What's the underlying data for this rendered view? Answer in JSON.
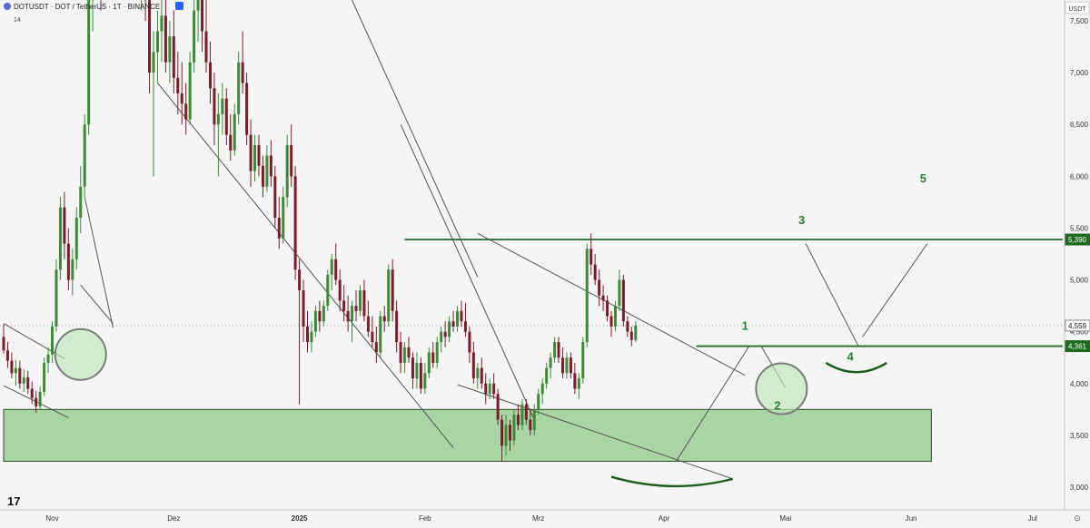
{
  "header": {
    "symbol_line": "DOTUSDT · DOT / TetherUS · 1T · BINANCE",
    "sub_value": "14"
  },
  "axis": {
    "currency": "USDT",
    "ticks": [
      {
        "value": 3000,
        "label": "3,000"
      },
      {
        "value": 3500,
        "label": "3,500"
      },
      {
        "value": 4000,
        "label": "4,000"
      },
      {
        "value": 4500,
        "label": "4,500"
      },
      {
        "value": 5000,
        "label": "5,000"
      },
      {
        "value": 5500,
        "label": "5,500"
      },
      {
        "value": 6000,
        "label": "6,000"
      },
      {
        "value": 6500,
        "label": "6,500"
      },
      {
        "value": 7000,
        "label": "7,000"
      },
      {
        "value": 7500,
        "label": "7,500"
      }
    ],
    "months": [
      {
        "day": 12,
        "label": "Nov"
      },
      {
        "day": 42,
        "label": "Dez"
      },
      {
        "day": 73,
        "label": "2025"
      },
      {
        "day": 104,
        "label": "Feb"
      },
      {
        "day": 132,
        "label": "Mrz"
      },
      {
        "day": 163,
        "label": "Apr"
      },
      {
        "day": 193,
        "label": "Mai"
      },
      {
        "day": 224,
        "label": "Jun"
      },
      {
        "day": 254,
        "label": "Jul"
      }
    ],
    "price_badges": [
      {
        "value": 5390,
        "label": "5,390",
        "style": "line"
      },
      {
        "value": 4559,
        "label": "4,559",
        "style": "last"
      },
      {
        "value": 4361,
        "label": "4,361",
        "style": "line"
      }
    ]
  },
  "branding": {
    "logo_text": "17"
  },
  "colors": {
    "up": "#3e8a3a",
    "down": "#7b1e2b",
    "level": "#1f6b1f",
    "zone_fill": "#a9d4a4",
    "zone_stroke": "#2c4a2c",
    "circle_fill": "#bfe3b8",
    "trendline": "#555555",
    "wave": "#2e7d32"
  },
  "chart_data": {
    "type": "candlestick",
    "symbol": "DOTUSDT",
    "interval": "1T",
    "exchange": "BINANCE",
    "x_unit": "days since 2024-10-21",
    "ylim": [
      2600,
      7800
    ],
    "candles_ohlc": [
      [
        4.45,
        4.57,
        4.29,
        4.32
      ],
      [
        4.32,
        4.4,
        4.15,
        4.22
      ],
      [
        4.22,
        4.3,
        4.05,
        4.1
      ],
      [
        4.1,
        4.23,
        3.98,
        4.15
      ],
      [
        4.15,
        4.22,
        3.95,
        4.0
      ],
      [
        4.0,
        4.14,
        3.92,
        4.06
      ],
      [
        4.06,
        4.12,
        3.9,
        3.95
      ],
      [
        3.95,
        4.02,
        3.8,
        3.86
      ],
      [
        3.86,
        3.93,
        3.72,
        3.78
      ],
      [
        3.78,
        3.97,
        3.75,
        3.92
      ],
      [
        3.92,
        4.25,
        3.88,
        4.2
      ],
      [
        4.2,
        4.35,
        4.1,
        4.28
      ],
      [
        4.28,
        4.6,
        4.2,
        4.55
      ],
      [
        4.55,
        5.2,
        4.5,
        5.1
      ],
      [
        5.1,
        5.8,
        5.0,
        5.7
      ],
      [
        5.7,
        5.85,
        5.2,
        5.35
      ],
      [
        5.35,
        5.5,
        4.9,
        5.0
      ],
      [
        5.0,
        5.3,
        4.85,
        5.2
      ],
      [
        5.2,
        5.7,
        5.1,
        5.6
      ],
      [
        5.6,
        6.1,
        5.45,
        5.9
      ],
      [
        5.9,
        6.6,
        5.8,
        6.5
      ],
      [
        6.5,
        7.95,
        6.4,
        7.8
      ],
      [
        7.8,
        8.4,
        7.4,
        8.2
      ],
      [
        8.2,
        8.8,
        7.9,
        8.5
      ],
      [
        8.5,
        8.7,
        7.6,
        7.9
      ],
      [
        7.9,
        8.9,
        7.8,
        8.6
      ],
      [
        8.6,
        9.2,
        8.3,
        9.0
      ],
      [
        9.0,
        9.4,
        8.5,
        8.7
      ],
      [
        8.7,
        9.1,
        8.2,
        8.4
      ],
      [
        8.4,
        8.8,
        8.0,
        8.6
      ],
      [
        8.6,
        8.9,
        7.9,
        8.1
      ],
      [
        8.1,
        8.5,
        7.7,
        8.3
      ],
      [
        8.3,
        8.8,
        8.0,
        8.55
      ],
      [
        8.55,
        8.75,
        7.8,
        7.95
      ],
      [
        7.95,
        8.3,
        7.6,
        8.1
      ],
      [
        8.1,
        8.4,
        7.5,
        7.7
      ],
      [
        7.7,
        7.95,
        6.8,
        7.0
      ],
      [
        7.0,
        7.4,
        6.0,
        7.2
      ],
      [
        7.2,
        7.6,
        6.9,
        7.4
      ],
      [
        7.4,
        7.8,
        7.1,
        7.55
      ],
      [
        7.55,
        7.7,
        7.0,
        7.1
      ],
      [
        7.1,
        7.5,
        6.9,
        7.35
      ],
      [
        7.35,
        7.6,
        6.8,
        6.95
      ],
      [
        6.95,
        7.2,
        6.6,
        6.8
      ],
      [
        6.8,
        7.1,
        6.5,
        6.7
      ],
      [
        6.7,
        6.9,
        6.4,
        6.55
      ],
      [
        6.55,
        7.2,
        6.5,
        7.1
      ],
      [
        7.1,
        7.7,
        7.0,
        7.6
      ],
      [
        7.6,
        8.0,
        7.3,
        7.8
      ],
      [
        7.8,
        8.1,
        7.2,
        7.4
      ],
      [
        7.4,
        7.7,
        7.0,
        7.1
      ],
      [
        7.1,
        7.3,
        6.7,
        6.85
      ],
      [
        6.85,
        7.0,
        6.3,
        6.5
      ],
      [
        6.5,
        6.8,
        6.0,
        6.6
      ],
      [
        6.6,
        6.9,
        6.4,
        6.75
      ],
      [
        6.75,
        6.85,
        6.3,
        6.4
      ],
      [
        6.4,
        6.6,
        6.15,
        6.25
      ],
      [
        6.25,
        6.7,
        6.2,
        6.6
      ],
      [
        6.6,
        7.2,
        6.5,
        7.1
      ],
      [
        7.1,
        7.4,
        6.8,
        6.9
      ],
      [
        6.9,
        7.0,
        6.3,
        6.4
      ],
      [
        6.4,
        6.55,
        5.9,
        6.05
      ],
      [
        6.05,
        6.4,
        5.95,
        6.3
      ],
      [
        6.3,
        6.4,
        6.0,
        6.1
      ],
      [
        6.1,
        6.2,
        5.8,
        5.9
      ],
      [
        5.9,
        6.3,
        5.85,
        6.2
      ],
      [
        6.2,
        6.35,
        5.9,
        6.0
      ],
      [
        6.0,
        6.1,
        5.5,
        5.6
      ],
      [
        5.6,
        5.8,
        5.3,
        5.4
      ],
      [
        5.4,
        5.9,
        5.35,
        5.8
      ],
      [
        5.8,
        6.4,
        5.7,
        6.3
      ],
      [
        6.3,
        6.5,
        5.9,
        6.0
      ],
      [
        6.0,
        6.1,
        5.0,
        5.1
      ],
      [
        5.1,
        5.2,
        3.8,
        4.9
      ],
      [
        4.9,
        5.0,
        4.4,
        4.55
      ],
      [
        4.55,
        4.7,
        4.3,
        4.4
      ],
      [
        4.4,
        4.6,
        4.3,
        4.5
      ],
      [
        4.5,
        4.75,
        4.45,
        4.7
      ],
      [
        4.7,
        4.8,
        4.5,
        4.6
      ],
      [
        4.6,
        4.8,
        4.55,
        4.75
      ],
      [
        4.75,
        5.1,
        4.7,
        5.05
      ],
      [
        5.05,
        5.25,
        4.9,
        5.2
      ],
      [
        5.2,
        5.35,
        4.95,
        5.0
      ],
      [
        5.0,
        5.1,
        4.7,
        4.8
      ],
      [
        4.8,
        4.95,
        4.6,
        4.7
      ],
      [
        4.7,
        4.85,
        4.5,
        4.6
      ],
      [
        4.6,
        4.8,
        4.4,
        4.75
      ],
      [
        4.75,
        4.9,
        4.6,
        4.7
      ],
      [
        4.7,
        4.95,
        4.65,
        4.9
      ],
      [
        4.9,
        5.0,
        4.6,
        4.65
      ],
      [
        4.65,
        4.8,
        4.45,
        4.5
      ],
      [
        4.5,
        4.65,
        4.35,
        4.4
      ],
      [
        4.4,
        4.55,
        4.2,
        4.3
      ],
      [
        4.3,
        4.7,
        4.25,
        4.65
      ],
      [
        4.65,
        4.75,
        4.5,
        4.6
      ],
      [
        4.6,
        5.15,
        4.55,
        5.1
      ],
      [
        5.1,
        5.2,
        4.6,
        4.7
      ],
      [
        4.7,
        4.8,
        4.3,
        4.4
      ],
      [
        4.4,
        4.5,
        4.1,
        4.2
      ],
      [
        4.2,
        4.4,
        4.1,
        4.35
      ],
      [
        4.35,
        4.45,
        4.2,
        4.25
      ],
      [
        4.25,
        4.3,
        3.95,
        4.05
      ],
      [
        4.05,
        4.3,
        3.95,
        4.2
      ],
      [
        4.2,
        4.25,
        3.9,
        3.95
      ],
      [
        3.95,
        4.2,
        3.9,
        4.1
      ],
      [
        4.1,
        4.35,
        4.05,
        4.3
      ],
      [
        4.3,
        4.4,
        4.15,
        4.2
      ],
      [
        4.2,
        4.45,
        4.15,
        4.4
      ],
      [
        4.4,
        4.55,
        4.3,
        4.5
      ],
      [
        4.5,
        4.6,
        4.35,
        4.45
      ],
      [
        4.45,
        4.65,
        4.4,
        4.6
      ],
      [
        4.6,
        4.7,
        4.5,
        4.55
      ],
      [
        4.55,
        4.75,
        4.5,
        4.7
      ],
      [
        4.7,
        4.8,
        4.55,
        4.6
      ],
      [
        4.6,
        4.78,
        4.45,
        4.5
      ],
      [
        4.5,
        4.55,
        4.2,
        4.3
      ],
      [
        4.3,
        4.4,
        4.0,
        4.05
      ],
      [
        4.05,
        4.2,
        3.95,
        4.15
      ],
      [
        4.15,
        4.25,
        3.95,
        4.0
      ],
      [
        4.0,
        4.1,
        3.8,
        3.9
      ],
      [
        3.9,
        4.05,
        3.85,
        4.0
      ],
      [
        4.0,
        4.1,
        3.85,
        3.9
      ],
      [
        3.9,
        3.95,
        3.6,
        3.65
      ],
      [
        3.65,
        3.7,
        3.25,
        3.4
      ],
      [
        3.4,
        3.7,
        3.3,
        3.6
      ],
      [
        3.6,
        3.65,
        3.35,
        3.45
      ],
      [
        3.45,
        3.75,
        3.4,
        3.7
      ],
      [
        3.7,
        3.8,
        3.55,
        3.6
      ],
      [
        3.6,
        3.85,
        3.55,
        3.8
      ],
      [
        3.8,
        3.85,
        3.6,
        3.65
      ],
      [
        3.65,
        3.75,
        3.5,
        3.55
      ],
      [
        3.55,
        3.8,
        3.5,
        3.75
      ],
      [
        3.75,
        3.95,
        3.7,
        3.9
      ],
      [
        3.9,
        4.05,
        3.8,
        4.0
      ],
      [
        4.0,
        4.2,
        3.95,
        4.15
      ],
      [
        4.15,
        4.3,
        4.05,
        4.25
      ],
      [
        4.25,
        4.45,
        4.2,
        4.4
      ],
      [
        4.4,
        4.45,
        4.2,
        4.25
      ],
      [
        4.25,
        4.35,
        4.05,
        4.1
      ],
      [
        4.1,
        4.3,
        4.05,
        4.25
      ],
      [
        4.25,
        4.3,
        4.05,
        4.1
      ],
      [
        4.1,
        4.2,
        3.9,
        3.95
      ],
      [
        3.95,
        4.1,
        3.85,
        4.05
      ],
      [
        4.05,
        4.45,
        4.0,
        4.4
      ],
      [
        4.4,
        5.35,
        4.35,
        5.3
      ],
      [
        5.3,
        5.45,
        5.05,
        5.15
      ],
      [
        5.15,
        5.25,
        4.95,
        5.0
      ],
      [
        5.0,
        5.1,
        4.75,
        4.85
      ],
      [
        4.85,
        4.95,
        4.7,
        4.8
      ],
      [
        4.8,
        4.85,
        4.6,
        4.65
      ],
      [
        4.65,
        4.7,
        4.45,
        4.55
      ],
      [
        4.55,
        4.8,
        4.5,
        4.75
      ],
      [
        4.75,
        5.1,
        4.7,
        5.0
      ],
      [
        5.0,
        5.05,
        4.55,
        4.6
      ],
      [
        4.6,
        4.65,
        4.45,
        4.5
      ],
      [
        4.5,
        4.55,
        4.36,
        4.42
      ],
      [
        4.42,
        4.6,
        4.4,
        4.559
      ]
    ],
    "price_scale_factor": 1000,
    "levels": [
      {
        "value": 5390,
        "from_day": 99,
        "label": "5,390"
      },
      {
        "value": 4361,
        "from_day": 171,
        "label": "4,361"
      }
    ],
    "zones": [
      {
        "from_day": 0,
        "to_day": 229,
        "low": 3250,
        "high": 3750
      }
    ],
    "last_price": 4559,
    "last_price_line": true,
    "trendlines": [
      {
        "from": [
          0,
          4580
        ],
        "to": [
          15,
          4240
        ]
      },
      {
        "from": [
          0,
          3980
        ],
        "to": [
          16,
          3670
        ]
      },
      {
        "from": [
          20,
          5800
        ],
        "to": [
          27,
          4540
        ]
      },
      {
        "from": [
          19,
          4950
        ],
        "to": [
          27,
          4580
        ]
      },
      {
        "from": [
          38,
          6900
        ],
        "to": [
          111,
          3380
        ]
      },
      {
        "from": [
          86,
          7700
        ],
        "to": [
          117,
          5030
        ]
      },
      {
        "from": [
          98,
          6500
        ],
        "to": [
          131,
          3650
        ]
      },
      {
        "from": [
          117,
          5450
        ],
        "to": [
          183,
          4080
        ]
      },
      {
        "from": [
          112,
          3990
        ],
        "to": [
          180,
          3080
        ]
      },
      {
        "from": [
          166,
          3250
        ],
        "to": [
          184,
          4360
        ]
      },
      {
        "from": [
          193,
          3960
        ],
        "to": [
          187,
          4360
        ]
      },
      {
        "from": [
          198,
          5350
        ],
        "to": [
          211,
          4361
        ]
      },
      {
        "from": [
          212,
          4450
        ],
        "to": [
          228,
          5350
        ]
      }
    ],
    "circles": [
      {
        "day": 19,
        "value": 4280
      },
      {
        "day": 192,
        "value": 3950
      }
    ],
    "arcs": [
      {
        "from": [
          150,
          3100
        ],
        "to": [
          180,
          3080
        ],
        "depth": 3010
      },
      {
        "from": [
          203,
          4200
        ],
        "to": [
          218,
          4200
        ],
        "depth": 4110
      }
    ],
    "wave_labels": [
      {
        "label": "1",
        "day": 183,
        "value": 4520
      },
      {
        "label": "2",
        "day": 191,
        "value": 3750
      },
      {
        "label": "3",
        "day": 197,
        "value": 5540
      },
      {
        "label": "4",
        "day": 209,
        "value": 4220
      },
      {
        "label": "5",
        "day": 227,
        "value": 5940
      }
    ]
  }
}
